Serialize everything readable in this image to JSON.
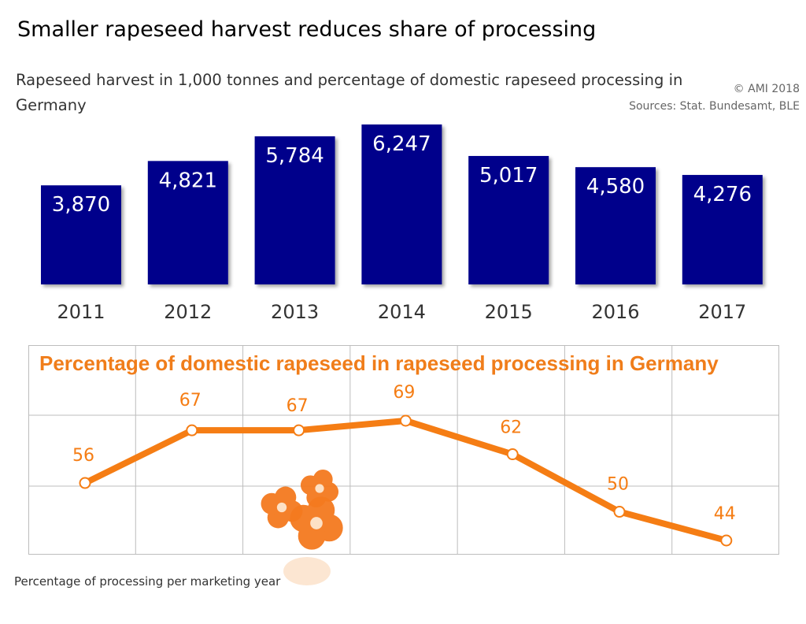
{
  "header": {
    "title": "Smaller rapeseed harvest reduces share of processing",
    "subtitle": "Rapeseed harvest in 1,000 tonnes and percentage of domestic rapeseed processing in Germany",
    "copyright": "© AMI 2018",
    "sources": "Sources: Stat. Bundesamt, BLE"
  },
  "footnote": "Percentage of processing per marketing year",
  "colors": {
    "bar": "#00008b",
    "line": "#f57d14",
    "title_orange": "#f07d1a",
    "grid": "#bdbdbd"
  },
  "chart_data": [
    {
      "type": "bar",
      "categories": [
        "2011",
        "2012",
        "2013",
        "2014",
        "2015",
        "2016",
        "2017"
      ],
      "values": [
        3870,
        4821,
        5784,
        6247,
        5017,
        4580,
        4276
      ],
      "value_labels": [
        "3,870",
        "4,821",
        "5,784",
        "6,247",
        "5,017",
        "4,580",
        "4,276"
      ],
      "title": "Rapeseed harvest in 1,000 tonnes and percentage of domestic rapeseed processing in Germany",
      "grid": false,
      "legend": "none"
    },
    {
      "type": "line",
      "title": "Percentage of domestic rapeseed in rapeseed processing in Germany",
      "x": [
        "2011",
        "2012",
        "2013",
        "2014",
        "2015",
        "2016",
        "2017"
      ],
      "values": [
        56,
        67,
        67,
        69,
        62,
        50,
        44
      ],
      "value_labels": [
        "56",
        "67",
        "67",
        "69",
        "62",
        "50",
        "44"
      ],
      "grid": true,
      "legend": "none",
      "decoration": "rapeseed-flower-icon"
    }
  ]
}
